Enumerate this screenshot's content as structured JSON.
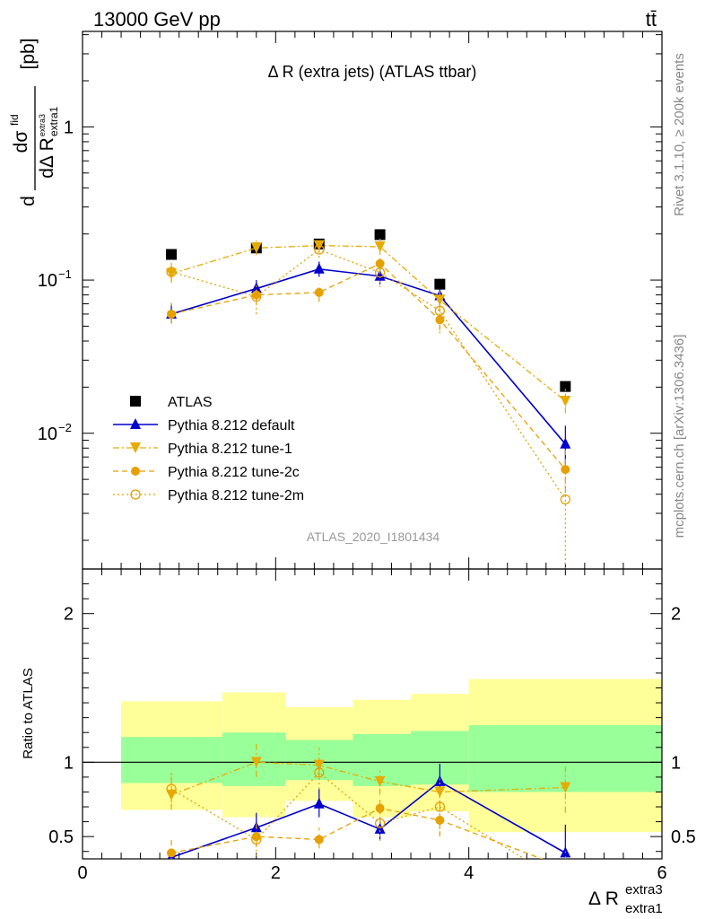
{
  "header": {
    "left": "13000 GeV pp",
    "right": "tt̄"
  },
  "side_labels": {
    "rivet": "Rivet 3.1.10, ≥ 200k events",
    "mcplots": "mcplots.cern.ch [arXiv:1306.3436]"
  },
  "chart_data": [
    {
      "panel": "main",
      "type": "line",
      "title": "Δ R (extra jets) (ATLAS ttbar)",
      "analysis_label": "ATLAS_2020_I1801434",
      "ylabel": "dσ^fid / dΔ R^extra3_extra1 [pb]",
      "ylabel_parts": {
        "d1": "d",
        "sigma": "dσ",
        "fid": "fid",
        "dR": "dΔ R",
        "sub": "extra1",
        "sup": "extra3",
        "unit": "[pb]"
      },
      "xlim": [
        0,
        6
      ],
      "ylim": [
        0.0013,
        4.2
      ],
      "log_y": true,
      "y_ticks": [
        {
          "value": 0.01,
          "base": "10",
          "exp": "−2"
        },
        {
          "value": 0.1,
          "base": "10",
          "exp": "−1"
        },
        {
          "value": 1,
          "label": "1"
        }
      ],
      "legend_position": "lower-left",
      "series": [
        {
          "name": "ATLAS",
          "color": "#000000",
          "marker": "square",
          "line": "none",
          "x": [
            0.92,
            1.8,
            2.45,
            3.08,
            3.7,
            5.0
          ],
          "y": [
            0.147,
            0.162,
            0.172,
            0.198,
            0.094,
            0.0202
          ],
          "xerr": [
            0,
            0,
            0,
            0,
            0,
            0
          ]
        },
        {
          "name": "Pythia 8.212 default",
          "color": "#0000cc",
          "marker": "triangle-up",
          "line": "solid",
          "x": [
            0.92,
            1.8,
            2.45,
            3.08,
            3.7,
            5.0
          ],
          "y": [
            0.06,
            0.088,
            0.118,
            0.106,
            0.079,
            0.0085
          ],
          "yerr": [
            [
              0.052,
              0.07
            ],
            [
              0.078,
              0.1
            ],
            [
              0.105,
              0.132
            ],
            [
              0.094,
              0.118
            ],
            [
              0.07,
              0.088
            ],
            [
              0.0062,
              0.0112
            ]
          ]
        },
        {
          "name": "Pythia 8.212 tune-1",
          "color": "#e6ab02",
          "marker": "triangle-down",
          "line": "dashdot",
          "x": [
            0.92,
            1.8,
            2.45,
            3.08,
            3.7,
            5.0
          ],
          "y": [
            0.11,
            0.162,
            0.168,
            0.165,
            0.074,
            0.0162
          ],
          "yerr": [
            [
              0.096,
              0.128
            ],
            [
              0.145,
              0.182
            ],
            [
              0.152,
              0.186
            ],
            [
              0.146,
              0.186
            ],
            [
              0.064,
              0.085
            ],
            [
              0.0135,
              0.0195
            ]
          ]
        },
        {
          "name": "Pythia 8.212 tune-2c",
          "color": "#e6a000",
          "marker": "circle",
          "line": "dashed",
          "x": [
            0.92,
            1.8,
            2.45,
            3.08,
            3.7,
            5.0
          ],
          "y": [
            0.06,
            0.08,
            0.083,
            0.128,
            0.055,
            0.0058
          ],
          "yerr": [
            [
              0.052,
              0.071
            ],
            [
              0.07,
              0.092
            ],
            [
              0.072,
              0.095
            ],
            [
              0.112,
              0.146
            ],
            [
              0.047,
              0.064
            ],
            [
              0.0042,
              0.0078
            ]
          ]
        },
        {
          "name": "Pythia 8.212 tune-2m",
          "color": "#e6a000",
          "marker": "open-circle",
          "line": "dotted",
          "x": [
            0.92,
            1.8,
            2.45,
            3.08,
            3.7,
            5.0
          ],
          "y": [
            0.113,
            0.078,
            0.158,
            0.112,
            0.063,
            0.0037
          ],
          "yerr": [
            [
              0.098,
              0.13
            ],
            [
              0.06,
              0.095
            ],
            [
              0.14,
              0.178
            ],
            [
              0.09,
              0.133
            ],
            [
              0.045,
              0.08
            ],
            [
              0.0013,
              0.0064
            ]
          ]
        }
      ]
    },
    {
      "panel": "ratio",
      "type": "line",
      "ylabel": "Ratio to ATLAS",
      "xlabel": "Δ R^extra3_extra1",
      "xlabel_parts": {
        "main": "Δ R",
        "sup": "extra3",
        "sub": "extra1"
      },
      "xlim": [
        0,
        6
      ],
      "ylim": [
        0.35,
        2.3
      ],
      "x_ticks": [
        0,
        2,
        4,
        6
      ],
      "y_ticks": [
        0.5,
        1,
        2
      ],
      "reference_line": 1,
      "bands": {
        "bins": [
          [
            0.4,
            1.45
          ],
          [
            1.45,
            2.1
          ],
          [
            2.1,
            2.8
          ],
          [
            2.8,
            3.4
          ],
          [
            3.4,
            4.0
          ],
          [
            4.0,
            6.0
          ]
        ],
        "yellow": [
          [
            0.68,
            1.41
          ],
          [
            0.63,
            1.47
          ],
          [
            0.74,
            1.37
          ],
          [
            0.63,
            1.42
          ],
          [
            0.67,
            1.46
          ],
          [
            0.53,
            1.56
          ]
        ],
        "green": [
          [
            0.86,
            1.17
          ],
          [
            0.84,
            1.2
          ],
          [
            0.88,
            1.15
          ],
          [
            0.84,
            1.19
          ],
          [
            0.85,
            1.21
          ],
          [
            0.8,
            1.25
          ]
        ],
        "yellow_color": "#ffff99",
        "green_color": "#99ff99"
      },
      "series": [
        {
          "name": "Pythia 8.212 default",
          "color": "#0000cc",
          "marker": "triangle-up",
          "line": "solid",
          "x": [
            0.92,
            1.8,
            2.45,
            3.08,
            3.7,
            5.0
          ],
          "y": [
            0.36,
            0.56,
            0.72,
            0.55,
            0.87,
            0.39
          ],
          "yerr": [
            [
              0.33,
              0.4
            ],
            [
              0.48,
              0.66
            ],
            [
              0.63,
              0.82
            ],
            [
              0.48,
              0.62
            ],
            [
              0.78,
              0.99
            ],
            [
              0.3,
              0.58
            ]
          ]
        },
        {
          "name": "Pythia 8.212 tune-1",
          "color": "#e6ab02",
          "marker": "triangle-down",
          "line": "dashdot",
          "x": [
            0.92,
            1.8,
            2.45,
            3.08,
            3.7,
            5.0
          ],
          "y": [
            0.78,
            1.0,
            0.98,
            0.87,
            0.8,
            0.83
          ],
          "yerr": [
            [
              0.68,
              0.93
            ],
            [
              0.9,
              1.13
            ],
            [
              0.9,
              1.1
            ],
            [
              0.78,
              0.96
            ],
            [
              0.7,
              0.89
            ],
            [
              0.66,
              0.97
            ]
          ]
        },
        {
          "name": "Pythia 8.212 tune-2c",
          "color": "#e6a000",
          "marker": "circle",
          "line": "dashed",
          "x": [
            0.92,
            1.8,
            2.45,
            3.08,
            3.7,
            5.0
          ],
          "y": [
            0.39,
            0.5,
            0.48,
            0.69,
            0.61,
            0.29
          ],
          "yerr": [
            [
              0.32,
              0.48
            ],
            [
              0.43,
              0.58
            ],
            [
              0.42,
              0.56
            ],
            [
              0.59,
              0.77
            ],
            [
              0.5,
              0.7
            ],
            [
              0.21,
              0.4
            ]
          ]
        },
        {
          "name": "Pythia 8.212 tune-2m",
          "color": "#e6a000",
          "marker": "open-circle",
          "line": "dotted",
          "x": [
            0.92,
            1.8,
            2.45,
            3.08,
            3.7,
            5.0
          ],
          "y": [
            0.82,
            0.48,
            0.93,
            0.59,
            0.7,
            0.18
          ],
          "yerr": [
            [
              0.7,
              0.94
            ],
            [
              0.37,
              0.59
            ],
            [
              0.82,
              1.03
            ],
            [
              0.47,
              0.7
            ],
            [
              0.52,
              0.85
            ],
            [
              0.1,
              0.3
            ]
          ]
        }
      ]
    }
  ]
}
